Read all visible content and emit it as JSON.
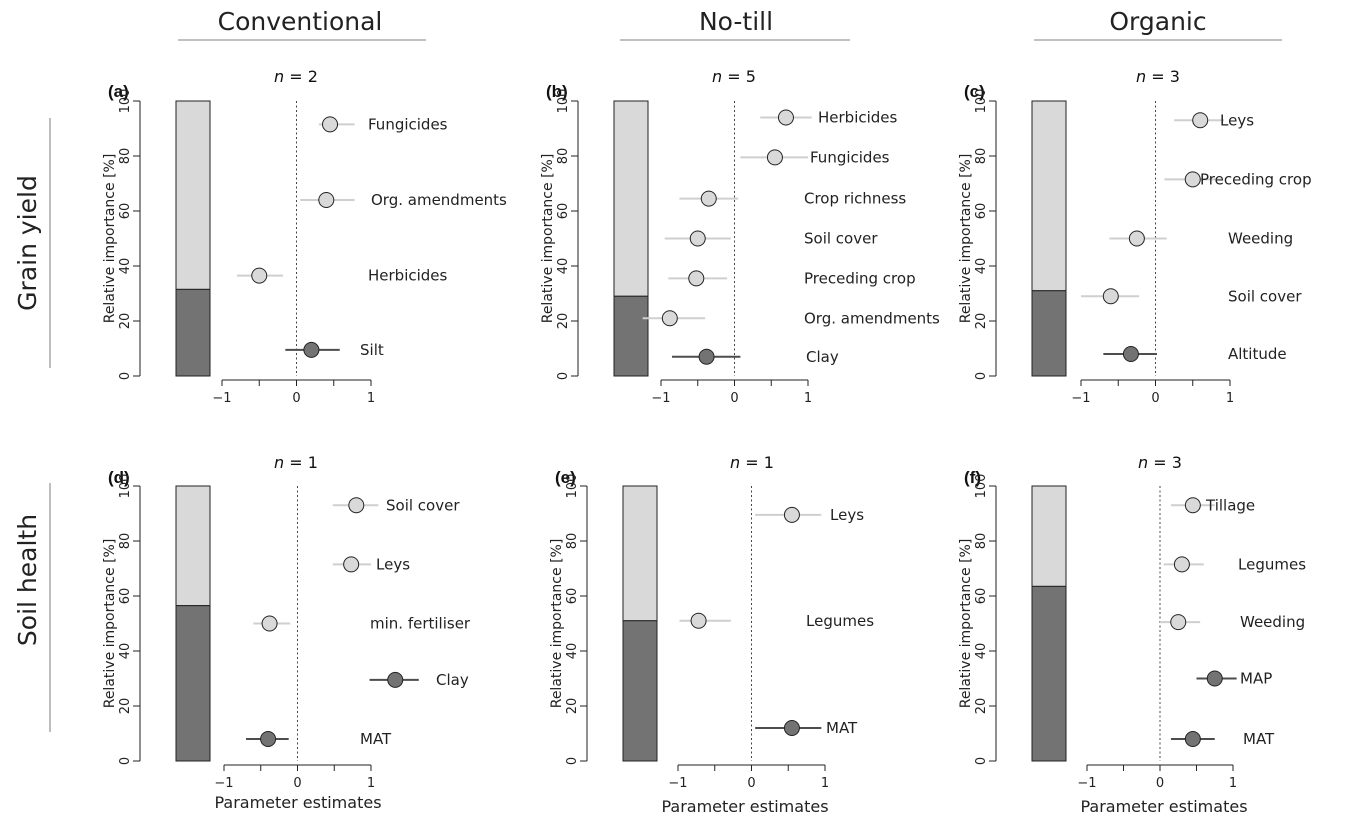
{
  "columns": [
    "Conventional",
    "No-till",
    "Organic"
  ],
  "rows": [
    "Grain yield",
    "Soil health"
  ],
  "axis": {
    "ylabel": "Relative importance [%]",
    "xlabel": "Parameter estimates",
    "yticks": [
      "0",
      "20",
      "40",
      "60",
      "80",
      "100"
    ],
    "xticks": [
      "−1",
      "0",
      "1"
    ]
  },
  "colors": {
    "light": "#d9d9d9",
    "dark": "#737373",
    "light_line": "#cfcfcf",
    "dark_line": "#4d4d4d"
  },
  "chart_data": [
    {
      "type": "bar+forest",
      "label": "(a)",
      "n": "2",
      "column": "Conventional",
      "row": "Grain yield",
      "bar": {
        "dark": 31.5,
        "light": 68.5
      },
      "xlim": [
        -1,
        1
      ],
      "estimates": [
        {
          "name": "Fungicides",
          "estimate": 0.45,
          "ci": [
            0.3,
            0.78
          ],
          "importance": 91.5,
          "type": "light"
        },
        {
          "name": "Org. amendments",
          "estimate": 0.4,
          "ci": [
            0.05,
            0.78
          ],
          "importance": 64,
          "type": "light"
        },
        {
          "name": "Herbicides",
          "estimate": -0.5,
          "ci": [
            -0.8,
            -0.18
          ],
          "importance": 36.5,
          "type": "light"
        },
        {
          "name": "Silt",
          "estimate": 0.2,
          "ci": [
            -0.15,
            0.58
          ],
          "importance": 9.5,
          "type": "dark"
        }
      ]
    },
    {
      "type": "bar+forest",
      "label": "(b)",
      "n": "5",
      "column": "No-till",
      "row": "Grain yield",
      "bar": {
        "dark": 29,
        "light": 71
      },
      "xlim": [
        -1,
        1
      ],
      "estimates": [
        {
          "name": "Herbicides",
          "estimate": 0.7,
          "ci": [
            0.35,
            1.05
          ],
          "importance": 94,
          "type": "light"
        },
        {
          "name": "Fungicides",
          "estimate": 0.55,
          "ci": [
            0.08,
            1.0
          ],
          "importance": 79.5,
          "type": "light"
        },
        {
          "name": "Crop richness",
          "estimate": -0.35,
          "ci": [
            -0.75,
            0.05
          ],
          "importance": 64.5,
          "type": "light"
        },
        {
          "name": "Soil cover",
          "estimate": -0.5,
          "ci": [
            -0.95,
            -0.05
          ],
          "importance": 50,
          "type": "light"
        },
        {
          "name": "Preceding crop",
          "estimate": -0.52,
          "ci": [
            -0.9,
            -0.1
          ],
          "importance": 35.5,
          "type": "light"
        },
        {
          "name": "Org. amendments",
          "estimate": -0.88,
          "ci": [
            -1.25,
            -0.4
          ],
          "importance": 21,
          "type": "light"
        },
        {
          "name": "Clay",
          "estimate": -0.38,
          "ci": [
            -0.85,
            0.08
          ],
          "importance": 7,
          "type": "dark"
        }
      ]
    },
    {
      "type": "bar+forest",
      "label": "(c)",
      "n": "3",
      "column": "Organic",
      "row": "Grain yield",
      "bar": {
        "dark": 31,
        "light": 69
      },
      "xlim": [
        -1,
        1
      ],
      "estimates": [
        {
          "name": "Leys",
          "estimate": 0.6,
          "ci": [
            0.25,
            0.92
          ],
          "importance": 93,
          "type": "light"
        },
        {
          "name": "Preceding crop",
          "estimate": 0.5,
          "ci": [
            0.12,
            0.88
          ],
          "importance": 71.5,
          "type": "light"
        },
        {
          "name": "Weeding",
          "estimate": -0.25,
          "ci": [
            -0.62,
            0.15
          ],
          "importance": 50,
          "type": "light"
        },
        {
          "name": "Soil cover",
          "estimate": -0.6,
          "ci": [
            -1.0,
            -0.22
          ],
          "importance": 29,
          "type": "light"
        },
        {
          "name": "Altitude",
          "estimate": -0.33,
          "ci": [
            -0.7,
            0.02
          ],
          "importance": 8,
          "type": "dark"
        }
      ]
    },
    {
      "type": "bar+forest",
      "label": "(d)",
      "n": "1",
      "column": "Conventional",
      "row": "Soil health",
      "bar": {
        "dark": 56.5,
        "light": 43.5
      },
      "xlim": [
        -1,
        1
      ],
      "estimates": [
        {
          "name": "Soil cover",
          "estimate": 0.8,
          "ci": [
            0.48,
            1.1
          ],
          "importance": 93,
          "type": "light"
        },
        {
          "name": "Leys",
          "estimate": 0.73,
          "ci": [
            0.48,
            1.0
          ],
          "importance": 71.5,
          "type": "light"
        },
        {
          "name": "min. fertiliser",
          "estimate": -0.38,
          "ci": [
            -0.6,
            -0.1
          ],
          "importance": 50,
          "type": "light"
        },
        {
          "name": "Clay",
          "estimate": 1.33,
          "ci": [
            0.98,
            1.65
          ],
          "importance": 29.5,
          "type": "dark"
        },
        {
          "name": "MAT",
          "estimate": -0.4,
          "ci": [
            -0.7,
            -0.12
          ],
          "importance": 8,
          "type": "dark"
        }
      ]
    },
    {
      "type": "bar+forest",
      "label": "(e)",
      "n": "1",
      "column": "No-till",
      "row": "Soil health",
      "bar": {
        "dark": 51,
        "light": 49
      },
      "xlim": [
        -1,
        1
      ],
      "estimates": [
        {
          "name": "Leys",
          "estimate": 0.55,
          "ci": [
            0.05,
            0.95
          ],
          "importance": 89.5,
          "type": "light"
        },
        {
          "name": "Legumes",
          "estimate": -0.72,
          "ci": [
            -0.98,
            -0.28
          ],
          "importance": 51,
          "type": "light"
        },
        {
          "name": "MAT",
          "estimate": 0.55,
          "ci": [
            0.05,
            0.95
          ],
          "importance": 12,
          "type": "dark"
        }
      ]
    },
    {
      "type": "bar+forest",
      "label": "(f)",
      "n": "3",
      "column": "Organic",
      "row": "Soil health",
      "bar": {
        "dark": 63.5,
        "light": 36.5
      },
      "xlim": [
        -1,
        1
      ],
      "estimates": [
        {
          "name": "Tillage",
          "estimate": 0.45,
          "ci": [
            0.15,
            0.75
          ],
          "importance": 93,
          "type": "light"
        },
        {
          "name": "Legumes",
          "estimate": 0.3,
          "ci": [
            0.05,
            0.6
          ],
          "importance": 71.5,
          "type": "light"
        },
        {
          "name": "Weeding",
          "estimate": 0.25,
          "ci": [
            0.0,
            0.55
          ],
          "importance": 50.5,
          "type": "light"
        },
        {
          "name": "MAP",
          "estimate": 0.75,
          "ci": [
            0.5,
            1.05
          ],
          "importance": 30,
          "type": "dark"
        },
        {
          "name": "MAT",
          "estimate": 0.45,
          "ci": [
            0.15,
            0.75
          ],
          "importance": 8,
          "type": "dark"
        }
      ]
    }
  ]
}
